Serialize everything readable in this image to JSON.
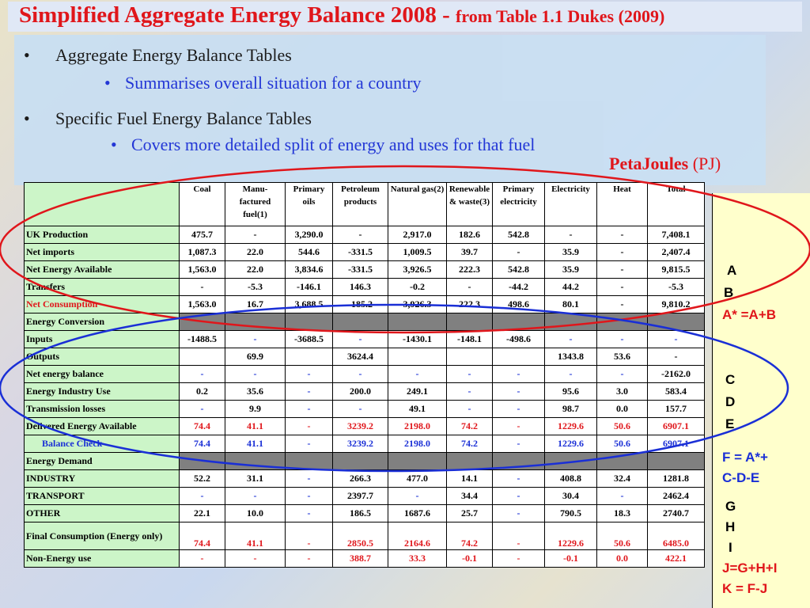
{
  "title": {
    "main": "Simplified Aggregate Energy Balance 2008 - ",
    "source": "from Table 1.1 Dukes (2009)"
  },
  "bullets": [
    {
      "text": "Aggregate Energy Balance Tables",
      "sub": "Summarises overall situation for a country"
    },
    {
      "text": "Specific Fuel Energy Balance Tables",
      "sub": "Covers more detailed split of energy and uses for that fuel"
    }
  ],
  "bullet_symbol": "•",
  "units": {
    "main": "PetaJoules",
    "paren": "(PJ)"
  },
  "table": {
    "headers": [
      "Coal",
      "Manu-factured fuel(1)",
      "Primary oils",
      "Petroleum products",
      "Natural gas(2)",
      "Renewable & waste(3)",
      "Primary electricity",
      "Electricity",
      "Heat",
      "Total"
    ],
    "rows": [
      {
        "label": "UK Production",
        "values": [
          "475.7",
          "-",
          "3,290.0",
          "-",
          "2,917.0",
          "182.6",
          "542.8",
          "-",
          "-",
          "7,408.1"
        ]
      },
      {
        "label": "Net imports",
        "values": [
          "1,087.3",
          "22.0",
          "544.6",
          "-331.5",
          "1,009.5",
          "39.7",
          "-",
          "35.9",
          "-",
          "2,407.4"
        ]
      },
      {
        "label": "Net Energy Available",
        "values": [
          "1,563.0",
          "22.0",
          "3,834.6",
          "-331.5",
          "3,926.5",
          "222.3",
          "542.8",
          "35.9",
          "-",
          "9,815.5"
        ]
      },
      {
        "label": "Transfers",
        "values": [
          "-",
          "-5.3",
          "-146.1",
          "146.3",
          "-0.2",
          "-",
          "-44.2",
          "44.2",
          "-",
          "-5.3"
        ]
      },
      {
        "label": "Net Consumption",
        "values": [
          "1,563.0",
          "16.7",
          "3,688.5",
          "-185.2",
          "3,926.3",
          "222.3",
          "498.6",
          "80.1",
          "-",
          "9,810.2"
        ]
      },
      {
        "label": "Energy Conversion",
        "values": []
      },
      {
        "label": "Inputs",
        "values": [
          "-1488.5",
          "-",
          "-3688.5",
          "-",
          "-1430.1",
          "-148.1",
          "-498.6",
          "-",
          "-",
          "-"
        ]
      },
      {
        "label": "Outputs",
        "values": [
          "",
          "69.9",
          "",
          "3624.4",
          "",
          "",
          "",
          "1343.8",
          "53.6",
          "-"
        ]
      },
      {
        "label": "Net energy balance",
        "values": [
          "-",
          "-",
          "-",
          "-",
          "-",
          "-",
          "-",
          "-",
          "-",
          "-2162.0"
        ]
      },
      {
        "label": "Energy Industry Use",
        "values": [
          "0.2",
          "35.6",
          "-",
          "200.0",
          "249.1",
          "-",
          "-",
          "95.6",
          "3.0",
          "583.4"
        ]
      },
      {
        "label": "Transmission losses",
        "values": [
          "-",
          "9.9",
          "-",
          "-",
          "49.1",
          "-",
          "-",
          "98.7",
          "0.0",
          "157.7"
        ]
      },
      {
        "label": "Delivered Energy Available",
        "values": [
          "74.4",
          "41.1",
          "-",
          "3239.2",
          "2198.0",
          "74.2",
          "-",
          "1229.6",
          "50.6",
          "6907.1"
        ]
      },
      {
        "label": "Balance Check",
        "values": [
          "74.4",
          "41.1",
          "-",
          "3239.2",
          "2198.0",
          "74.2",
          "-",
          "1229.6",
          "50.6",
          "6907.1"
        ]
      },
      {
        "label": "Energy Demand",
        "values": []
      },
      {
        "label": "INDUSTRY",
        "values": [
          "52.2",
          "31.1",
          "-",
          "266.3",
          "477.0",
          "14.1",
          "-",
          "408.8",
          "32.4",
          "1281.8"
        ]
      },
      {
        "label": "TRANSPORT",
        "values": [
          "-",
          "-",
          "-",
          "2397.7",
          "-",
          "34.4",
          "-",
          "30.4",
          "-",
          "2462.4"
        ]
      },
      {
        "label": "OTHER",
        "values": [
          "22.1",
          "10.0",
          "-",
          "186.5",
          "1687.6",
          "25.7",
          "-",
          "790.5",
          "18.3",
          "2740.7"
        ]
      },
      {
        "label": "Final Consumption (Energy only)",
        "values": [
          "74.4",
          "41.1",
          "-",
          "2850.5",
          "2164.6",
          "74.2",
          "-",
          "1229.6",
          "50.6",
          "6485.0"
        ]
      },
      {
        "label": "Non-Energy use",
        "values": [
          "-",
          "-",
          "-",
          "388.7",
          "33.3",
          "-0.1",
          "-",
          "-0.1",
          "0.0",
          "422.1"
        ]
      }
    ]
  },
  "side_notes": {
    "abc": [
      "A",
      "B",
      "A* =A+B"
    ],
    "cde": [
      "C",
      "D",
      "E"
    ],
    "f": [
      "F = A*+",
      "C-D-E"
    ],
    "ghi": [
      "G",
      "H",
      "I",
      "J=G+H+I",
      "K = F-J"
    ]
  },
  "colors": {
    "title_red": "#e0161b",
    "sub_blue": "#1a2fd6",
    "row_label_green": "#ccf5c8",
    "side_yellow": "#ffffcc",
    "ellipse_red": "#e0161b",
    "ellipse_blue": "#1a2fd6"
  }
}
